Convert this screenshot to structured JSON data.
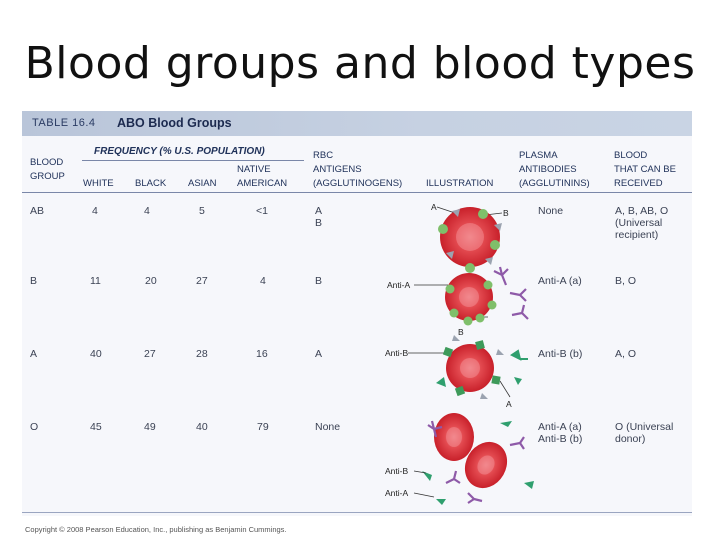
{
  "slide_title": "Blood groups and blood types",
  "table": {
    "number": "TABLE 16.4",
    "name": "ABO Blood Groups",
    "frequency_header": "FREQUENCY (% U.S. POPULATION)",
    "columns": {
      "blood_group": [
        "BLOOD",
        "GROUP"
      ],
      "white": "WHITE",
      "black": "BLACK",
      "asian": "ASIAN",
      "native": [
        "NATIVE",
        "AMERICAN"
      ],
      "rbc": [
        "RBC",
        "ANTIGENS",
        "(AGGLUTINOGENS)"
      ],
      "illustration": "ILLUSTRATION",
      "plasma": [
        "PLASMA",
        "ANTIBODIES",
        "(AGGLUTININS)"
      ],
      "received": [
        "BLOOD",
        "THAT CAN BE",
        "RECEIVED"
      ]
    },
    "rows": [
      {
        "group": "AB",
        "white": "4",
        "black": "4",
        "asian": "5",
        "native": "<1",
        "antigens": [
          "A",
          "B"
        ],
        "antibodies": [
          "None"
        ],
        "received": [
          "A, B, AB, O",
          "(Universal",
          "recipient)"
        ]
      },
      {
        "group": "B",
        "white": "11",
        "black": "20",
        "asian": "27",
        "native": "4",
        "antigens": [
          "B"
        ],
        "antibodies": [
          "Anti-A (a)"
        ],
        "received": [
          "B, O"
        ]
      },
      {
        "group": "A",
        "white": "40",
        "black": "27",
        "asian": "28",
        "native": "16",
        "antigens": [
          "A"
        ],
        "antibodies": [
          "Anti-B (b)"
        ],
        "received": [
          "A, O"
        ]
      },
      {
        "group": "O",
        "white": "45",
        "black": "49",
        "asian": "40",
        "native": "79",
        "antigens": [
          "None"
        ],
        "antibodies": [
          "Anti-A (a)",
          "Anti-B (b)"
        ],
        "received": [
          "O (Universal",
          "donor)"
        ]
      }
    ],
    "illustration_labels": {
      "ab_a": "A",
      "ab_b": "B",
      "b_anti_a": "Anti-A",
      "b_b": "B",
      "a_anti_b": "Anti-B",
      "a_a": "A",
      "o_anti_b": "Anti-B",
      "o_anti_a": "Anti-A"
    },
    "colors": {
      "rbc": "#e1323a",
      "antigen_b": "#7fbf6a",
      "antigen_a": "#3e9a5a",
      "antibody_a": "#8e5aa8",
      "antibody_b": "#2f9f6e",
      "header_bar": "#c0cbdd"
    }
  },
  "copyright": "Copyright © 2008 Pearson Education, Inc., publishing as Benjamin Cummings."
}
